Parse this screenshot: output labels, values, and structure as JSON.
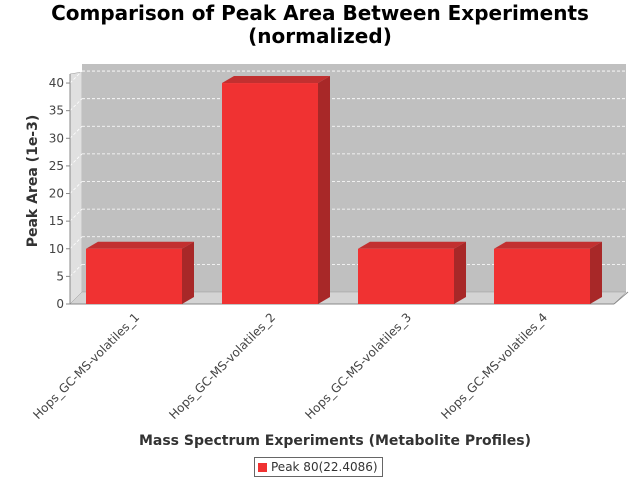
{
  "chart_data": {
    "type": "bar",
    "title_line1": "Comparison of Peak Area Between Experiments",
    "title_line2": "(normalized)",
    "xlabel": "Mass Spectrum Experiments (Metabolite Profiles)",
    "ylabel": "Peak Area (1e-3)",
    "categories": [
      "Hops_GC-MS-volatiles_1",
      "Hops_GC-MS-volatiles_2",
      "Hops_GC-MS-volatiles_3",
      "Hops_GC-MS-volatiles_4"
    ],
    "series": [
      {
        "name": "Peak 80(22.4086)",
        "values": [
          10,
          40,
          10,
          10
        ]
      }
    ],
    "ylim": [
      0,
      42
    ],
    "yticks": [
      0,
      5,
      10,
      15,
      20,
      25,
      30,
      35,
      40
    ],
    "grid": true,
    "legend_position": "bottom-center",
    "colors": {
      "bar_front": "#f03232",
      "bar_top": "#c23030",
      "bar_side": "#a82828",
      "plot_bg": "#c0c0c0",
      "wall": "#e0e0e0",
      "floor": "#d4d4d4",
      "gridline": "#ffffff"
    }
  }
}
